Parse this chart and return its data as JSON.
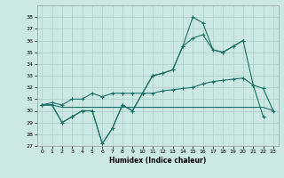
{
  "xlabel": "Humidex (Indice chaleur)",
  "background_color": "#cce8e4",
  "grid_color": "#aaccca",
  "line_color": "#1a7068",
  "xlim": [
    -0.5,
    23.5
  ],
  "ylim": [
    27,
    39
  ],
  "yticks": [
    27,
    28,
    29,
    30,
    31,
    32,
    33,
    34,
    35,
    36,
    37,
    38
  ],
  "xticks": [
    0,
    1,
    2,
    3,
    4,
    5,
    6,
    7,
    8,
    9,
    10,
    11,
    12,
    13,
    14,
    15,
    16,
    17,
    18,
    19,
    20,
    21,
    22,
    23
  ],
  "s1_x": [
    0,
    1,
    2,
    3,
    4,
    5,
    6,
    7,
    8,
    9,
    10,
    11,
    12,
    13,
    14,
    15,
    16,
    17,
    18,
    19,
    20,
    21,
    22
  ],
  "s1_y": [
    30.5,
    30.5,
    29.0,
    29.5,
    30.0,
    30.0,
    27.2,
    28.5,
    30.5,
    30.0,
    31.5,
    33.0,
    33.2,
    33.5,
    35.5,
    38.0,
    37.5,
    35.2,
    35.0,
    35.5,
    36.0,
    32.2,
    29.5
  ],
  "s2_x": [
    0,
    1,
    2,
    3,
    4,
    5,
    6,
    7,
    8,
    9,
    10,
    11,
    12,
    13,
    14,
    15,
    16,
    17,
    18,
    19,
    20
  ],
  "s2_y": [
    30.5,
    30.5,
    29.0,
    29.5,
    30.0,
    30.0,
    27.2,
    28.5,
    30.5,
    30.0,
    31.5,
    33.0,
    33.2,
    33.5,
    35.5,
    36.2,
    36.5,
    35.2,
    35.0,
    35.5,
    36.0
  ],
  "s3_x": [
    0,
    1,
    2,
    3,
    4,
    5,
    6,
    7,
    8,
    9,
    10,
    11,
    12,
    13,
    14,
    15,
    16,
    17,
    18,
    19,
    20,
    21,
    22,
    23
  ],
  "s3_y": [
    30.5,
    30.5,
    30.3,
    30.3,
    30.3,
    30.3,
    30.3,
    30.3,
    30.3,
    30.3,
    30.3,
    30.3,
    30.3,
    30.3,
    30.3,
    30.3,
    30.3,
    30.3,
    30.3,
    30.3,
    30.3,
    30.3,
    30.3,
    30.0
  ],
  "s4_x": [
    0,
    1,
    2,
    3,
    4,
    5,
    6,
    7,
    8,
    9,
    10,
    11,
    12,
    13,
    14,
    15,
    16,
    17,
    18,
    19,
    20,
    21,
    22,
    23
  ],
  "s4_y": [
    30.5,
    30.7,
    30.5,
    31.0,
    31.0,
    31.5,
    31.2,
    31.5,
    31.5,
    31.5,
    31.5,
    31.5,
    31.7,
    31.8,
    31.9,
    32.0,
    32.3,
    32.5,
    32.6,
    32.7,
    32.8,
    32.2,
    31.9,
    30.0
  ]
}
